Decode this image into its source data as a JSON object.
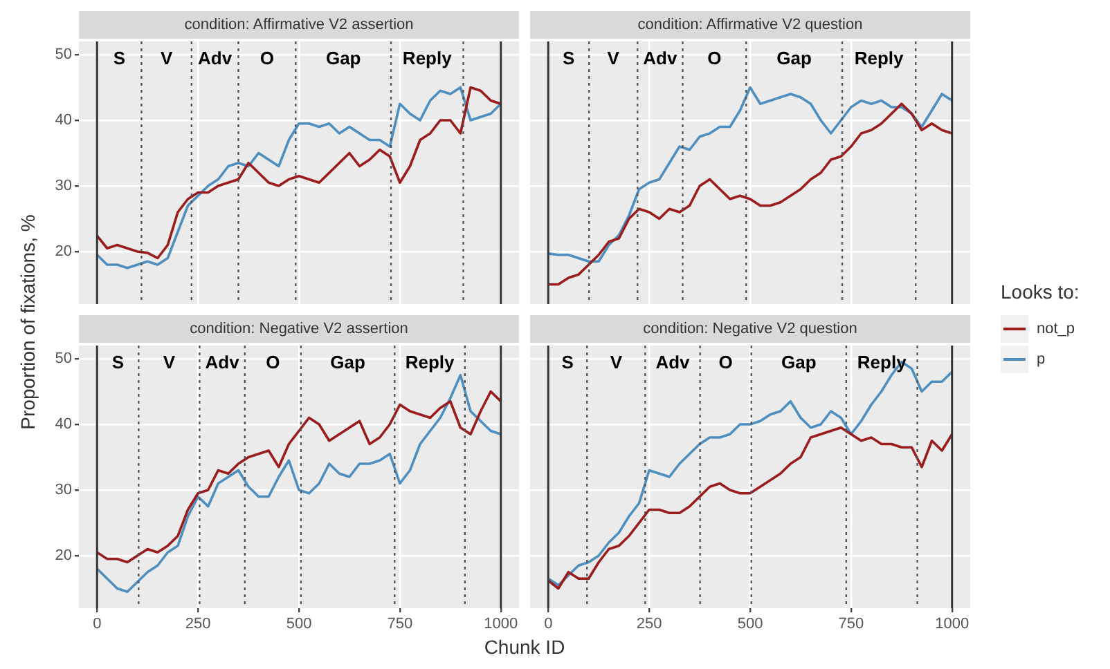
{
  "chart_data": [
    {
      "type": "line",
      "title": "condition: Affirmative V2 assertion",
      "ylabel": "Proportion of fixations, %",
      "legend_title": "Looks to:",
      "legend": "right",
      "x": [
        0,
        25,
        50,
        75,
        100,
        125,
        150,
        175,
        200,
        225,
        250,
        275,
        300,
        325,
        350,
        375,
        400,
        425,
        450,
        475,
        500,
        525,
        550,
        575,
        600,
        625,
        650,
        675,
        700,
        725,
        750,
        775,
        800,
        825,
        850,
        875,
        900,
        925,
        950,
        975,
        1000
      ],
      "series": [
        {
          "name": "not_p",
          "color": "#9b1c1c",
          "values": [
            22.4,
            20.5,
            21,
            20.5,
            20,
            19.8,
            19,
            21,
            26,
            28,
            29,
            29,
            30,
            30.5,
            31,
            33.5,
            32,
            30.5,
            30,
            31,
            31.5,
            31,
            30.5,
            32,
            33.5,
            35,
            33,
            34,
            35.5,
            34.5,
            30.5,
            33,
            37,
            38,
            40,
            40,
            38,
            45,
            44.5,
            43,
            42.5
          ]
        },
        {
          "name": "p",
          "color": "#4f8fc0",
          "values": [
            19.5,
            18,
            18,
            17.5,
            18,
            18.5,
            18,
            19,
            23,
            27,
            28.5,
            30,
            31,
            33,
            33.5,
            33,
            35,
            34,
            33,
            37,
            39.5,
            39.5,
            39,
            39.5,
            38,
            39,
            38,
            37,
            37,
            36,
            42.5,
            41,
            40,
            43,
            44.5,
            44,
            45,
            40,
            40.5,
            41,
            42.5
          ]
        }
      ],
      "xlim": [
        -45,
        1045
      ],
      "xticks": [
        0,
        250,
        500,
        750,
        1000
      ],
      "ylim": [
        12,
        52
      ],
      "yticks": [
        20,
        30,
        40,
        50
      ],
      "grid": true,
      "tick_labels": "y",
      "line_style": "solid",
      "marker": "none",
      "ref_lines": [
        {
          "axis": "x",
          "value": 0,
          "line_style": "solid"
        },
        {
          "axis": "x",
          "value": 110,
          "line_style": "dotted"
        },
        {
          "axis": "x",
          "value": 234,
          "line_style": "dotted"
        },
        {
          "axis": "x",
          "value": 350,
          "line_style": "dotted"
        },
        {
          "axis": "x",
          "value": 492,
          "line_style": "dotted"
        },
        {
          "axis": "x",
          "value": 728,
          "line_style": "dotted"
        },
        {
          "axis": "x",
          "value": 907,
          "line_style": "dotted"
        },
        {
          "axis": "x",
          "value": 1000,
          "line_style": "solid"
        }
      ],
      "annotations": [
        "S",
        "V",
        "Adv",
        "O",
        "Gap",
        "Reply"
      ]
    },
    {
      "type": "line",
      "title": "condition: Affirmative V2 question",
      "x": [
        0,
        25,
        50,
        75,
        100,
        125,
        150,
        175,
        200,
        225,
        250,
        275,
        300,
        325,
        350,
        375,
        400,
        425,
        450,
        475,
        500,
        525,
        550,
        575,
        600,
        625,
        650,
        675,
        700,
        725,
        750,
        775,
        800,
        825,
        850,
        875,
        900,
        925,
        950,
        975,
        1000
      ],
      "series": [
        {
          "color": "#9b1c1c",
          "values": [
            15,
            15,
            16,
            16.5,
            18,
            19.5,
            21.5,
            22,
            25,
            26.5,
            26,
            25,
            26.5,
            26,
            27,
            30,
            31,
            29.5,
            28,
            28.5,
            28,
            27,
            27,
            27.5,
            28.5,
            29.5,
            31,
            32,
            34,
            34.5,
            36,
            38,
            38.5,
            39.5,
            41,
            42.5,
            41,
            38.5,
            39.5,
            38.5,
            38
          ]
        },
        {
          "color": "#4f8fc0",
          "values": [
            19.7,
            19.5,
            19.5,
            19,
            18.5,
            18.5,
            21,
            22.5,
            25.5,
            29.5,
            30.5,
            31,
            33.5,
            36,
            35.5,
            37.5,
            38,
            39,
            39,
            41.5,
            45,
            42.5,
            43,
            43.5,
            44,
            43.5,
            42.5,
            40,
            38,
            40,
            42,
            43,
            42.5,
            43,
            42,
            42,
            41,
            39,
            41.5,
            44,
            43
          ]
        }
      ],
      "xlim": [
        -45,
        1045
      ],
      "xticks": [
        0,
        250,
        500,
        750,
        1000
      ],
      "ylim": [
        12,
        52
      ],
      "yticks": [
        20,
        30,
        40,
        50
      ],
      "grid": true,
      "tick_labels": false,
      "line_style": "solid",
      "marker": "none",
      "ref_lines": [
        {
          "axis": "x",
          "value": 0,
          "line_style": "solid"
        },
        {
          "axis": "x",
          "value": 101,
          "line_style": "dotted"
        },
        {
          "axis": "x",
          "value": 221,
          "line_style": "dotted"
        },
        {
          "axis": "x",
          "value": 333,
          "line_style": "dotted"
        },
        {
          "axis": "x",
          "value": 490,
          "line_style": "dotted"
        },
        {
          "axis": "x",
          "value": 728,
          "line_style": "dotted"
        },
        {
          "axis": "x",
          "value": 910,
          "line_style": "dotted"
        },
        {
          "axis": "x",
          "value": 1000,
          "line_style": "solid"
        }
      ],
      "annotations": [
        "S",
        "V",
        "Adv",
        "O",
        "Gap",
        "Reply"
      ]
    },
    {
      "type": "line",
      "title": "condition: Negative V2 assertion",
      "xlabel": "Chunk ID",
      "x": [
        0,
        25,
        50,
        75,
        100,
        125,
        150,
        175,
        200,
        225,
        250,
        275,
        300,
        325,
        350,
        375,
        400,
        425,
        450,
        475,
        500,
        525,
        550,
        575,
        600,
        625,
        650,
        675,
        700,
        725,
        750,
        775,
        800,
        825,
        850,
        875,
        900,
        925,
        950,
        975,
        1000
      ],
      "series": [
        {
          "color": "#9b1c1c",
          "values": [
            20.5,
            19.5,
            19.5,
            19,
            20,
            21,
            20.5,
            21.5,
            23,
            27,
            29.5,
            30,
            33,
            32.5,
            34,
            35,
            35.5,
            36,
            33.5,
            37,
            39,
            41,
            40,
            37.5,
            38.5,
            39.5,
            40.5,
            37,
            38,
            40,
            43,
            42,
            41.5,
            41,
            42.5,
            43.5,
            39.5,
            38.5,
            42,
            45,
            43.5
          ]
        },
        {
          "color": "#4f8fc0",
          "values": [
            18,
            16.5,
            15,
            14.5,
            16,
            17.5,
            18.5,
            20.5,
            21.5,
            26,
            29,
            27.5,
            31,
            32,
            33,
            30.5,
            29,
            29,
            32,
            34.5,
            30,
            29.5,
            31,
            34,
            32.5,
            32,
            34,
            34,
            34.5,
            35.5,
            31,
            33,
            37,
            39,
            41,
            44,
            47.5,
            42,
            40.5,
            39,
            38.5
          ]
        }
      ],
      "xlim": [
        -45,
        1045
      ],
      "xticks": [
        0,
        250,
        500,
        750,
        1000
      ],
      "ylim": [
        12,
        52
      ],
      "yticks": [
        20,
        30,
        40,
        50
      ],
      "grid": true,
      "line_style": "solid",
      "marker": "none",
      "ref_lines": [
        {
          "axis": "x",
          "value": 0,
          "line_style": "solid"
        },
        {
          "axis": "x",
          "value": 103,
          "line_style": "dotted"
        },
        {
          "axis": "x",
          "value": 254,
          "line_style": "dotted"
        },
        {
          "axis": "x",
          "value": 366,
          "line_style": "dotted"
        },
        {
          "axis": "x",
          "value": 505,
          "line_style": "dotted"
        },
        {
          "axis": "x",
          "value": 737,
          "line_style": "dotted"
        },
        {
          "axis": "x",
          "value": 911,
          "line_style": "dotted"
        },
        {
          "axis": "x",
          "value": 1000,
          "line_style": "solid"
        }
      ],
      "annotations": [
        "S",
        "V",
        "Adv",
        "O",
        "Gap",
        "Reply"
      ]
    },
    {
      "type": "line",
      "title": "condition: Negative V2 question",
      "x": [
        0,
        25,
        50,
        75,
        100,
        125,
        150,
        175,
        200,
        225,
        250,
        275,
        300,
        325,
        350,
        375,
        400,
        425,
        450,
        475,
        500,
        525,
        550,
        575,
        600,
        625,
        650,
        675,
        700,
        725,
        750,
        775,
        800,
        825,
        850,
        875,
        900,
        925,
        950,
        975,
        1000
      ],
      "series": [
        {
          "color": "#9b1c1c",
          "values": [
            16.2,
            15,
            17.5,
            16.5,
            16.5,
            19,
            21,
            21.5,
            23,
            25,
            27,
            27,
            26.5,
            26.5,
            27.5,
            29,
            30.5,
            31,
            30,
            29.5,
            29.5,
            30.5,
            31.5,
            32.5,
            34,
            35,
            38,
            38.5,
            39,
            39.5,
            38.5,
            37.5,
            38,
            37,
            37,
            36.5,
            36.5,
            33.5,
            37.5,
            36,
            38.5
          ]
        },
        {
          "color": "#4f8fc0",
          "values": [
            16.5,
            15.5,
            17,
            18.5,
            19,
            20,
            22,
            23.5,
            26,
            28,
            33,
            32.5,
            32,
            34,
            35.5,
            37,
            38,
            38,
            38.5,
            40,
            40,
            40.5,
            41.5,
            42,
            43.5,
            41,
            39.5,
            40,
            42,
            41,
            38.5,
            40.5,
            43,
            45,
            47.5,
            49.5,
            48.5,
            45,
            46.5,
            46.5,
            48
          ]
        }
      ],
      "xlim": [
        -45,
        1045
      ],
      "xticks": [
        0,
        250,
        500,
        750,
        1000
      ],
      "ylim": [
        12,
        52
      ],
      "yticks": [
        20,
        30,
        40,
        50
      ],
      "grid": true,
      "tick_labels": "x",
      "line_style": "solid",
      "marker": "none",
      "ref_lines": [
        {
          "axis": "x",
          "value": 0,
          "line_style": "solid"
        },
        {
          "axis": "x",
          "value": 96,
          "line_style": "dotted"
        },
        {
          "axis": "x",
          "value": 240,
          "line_style": "dotted"
        },
        {
          "axis": "x",
          "value": 376,
          "line_style": "dotted"
        },
        {
          "axis": "x",
          "value": 503,
          "line_style": "dotted"
        },
        {
          "axis": "x",
          "value": 738,
          "line_style": "dotted"
        },
        {
          "axis": "x",
          "value": 914,
          "line_style": "dotted"
        },
        {
          "axis": "x",
          "value": 1000,
          "line_style": "solid"
        }
      ],
      "annotations": [
        "S",
        "V",
        "Adv",
        "O",
        "Gap",
        "Reply"
      ]
    }
  ]
}
